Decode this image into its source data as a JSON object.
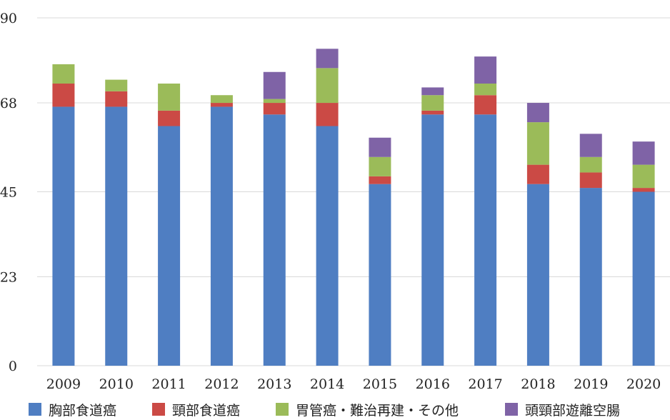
{
  "chart_data": {
    "type": "bar",
    "stacked": true,
    "categories": [
      "2009",
      "2010",
      "2011",
      "2012",
      "2013",
      "2014",
      "2015",
      "2016",
      "2017",
      "2018",
      "2019",
      "2020"
    ],
    "series": [
      {
        "name": "胸部食道癌",
        "color": "#4f7ec2",
        "values": [
          67,
          67,
          62,
          67,
          65,
          62,
          47,
          65,
          65,
          47,
          46,
          45
        ]
      },
      {
        "name": "頸部食道癌",
        "color": "#cb4a45",
        "values": [
          6,
          4,
          4,
          1,
          3,
          6,
          2,
          1,
          5,
          5,
          4,
          1
        ]
      },
      {
        "name": "胃管癌・難治再建・その他",
        "color": "#9bbb59",
        "values": [
          5,
          3,
          7,
          2,
          1,
          9,
          5,
          4,
          3,
          11,
          4,
          6
        ]
      },
      {
        "name": "頭頸部遊離空腸",
        "color": "#7f63a6",
        "values": [
          0,
          0,
          0,
          0,
          7,
          5,
          5,
          2,
          7,
          5,
          6,
          6
        ]
      }
    ],
    "yticks": [
      "0",
      "23",
      "45",
      "68",
      "90"
    ],
    "ylim": [
      0,
      90
    ],
    "grid": true,
    "legend_position": "bottom",
    "title": "",
    "xlabel": "",
    "ylabel": ""
  }
}
